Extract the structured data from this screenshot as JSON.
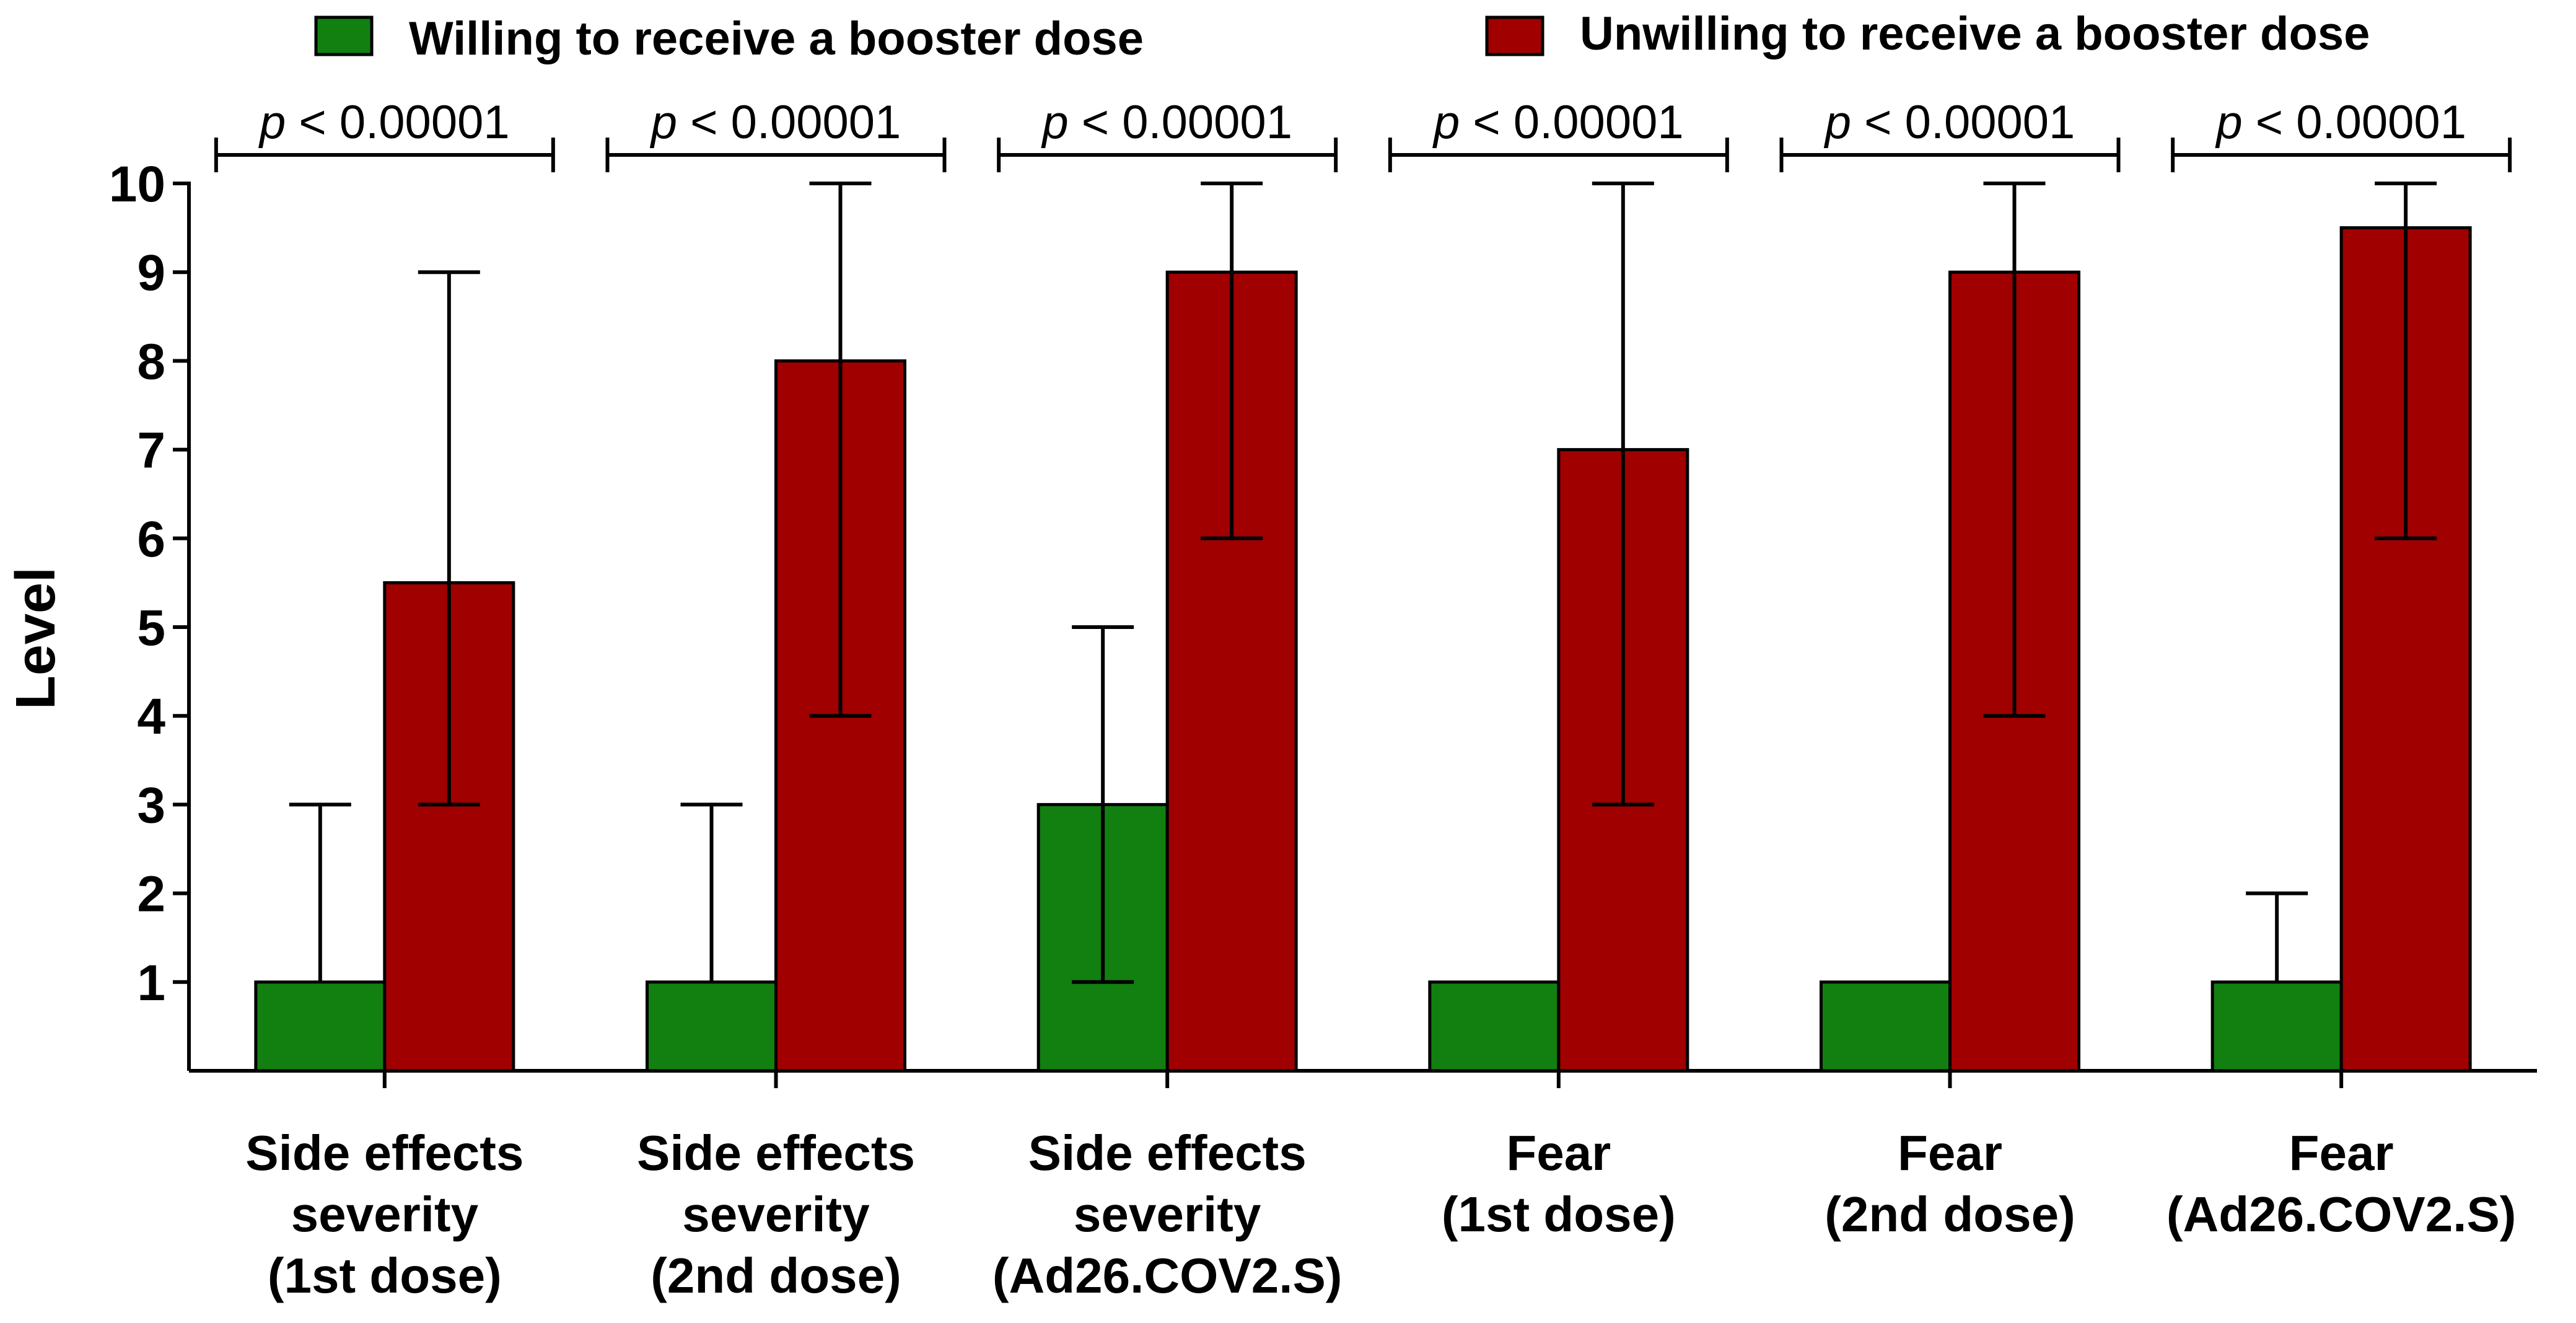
{
  "chart_data": {
    "type": "bar",
    "ylabel": "Level",
    "ylim": [
      0,
      10
    ],
    "yticks": [
      1,
      2,
      3,
      4,
      5,
      6,
      7,
      8,
      9,
      10
    ],
    "categories": [
      [
        "Side effects",
        "severity",
        "(1st dose)"
      ],
      [
        "Side effects",
        "severity",
        "(2nd dose)"
      ],
      [
        "Side effects",
        "severity",
        "(Ad26.COV2.S)"
      ],
      [
        "Fear",
        "(1st dose)"
      ],
      [
        "Fear",
        "(2nd dose)"
      ],
      [
        "Fear",
        "(Ad26.COV2.S)"
      ]
    ],
    "series": [
      {
        "name": "Willing to receive a booster dose",
        "color": "#118011",
        "values": [
          1,
          1,
          3,
          1,
          1,
          1
        ],
        "error_low": [
          null,
          null,
          1,
          null,
          null,
          null
        ],
        "error_high": [
          3,
          3,
          5,
          null,
          null,
          2
        ]
      },
      {
        "name": "Unwilling to receive a booster dose",
        "color": "#a00000",
        "values": [
          5.5,
          8,
          9,
          7,
          9,
          9.5
        ],
        "error_low": [
          3,
          4,
          6,
          3,
          4,
          6
        ],
        "error_high": [
          9,
          10,
          10,
          10,
          10,
          10
        ]
      }
    ],
    "annotations": {
      "p_prefix": "p",
      "p_suffix": " < 0.00001",
      "count": 6
    },
    "legend": "top",
    "grid": false
  }
}
